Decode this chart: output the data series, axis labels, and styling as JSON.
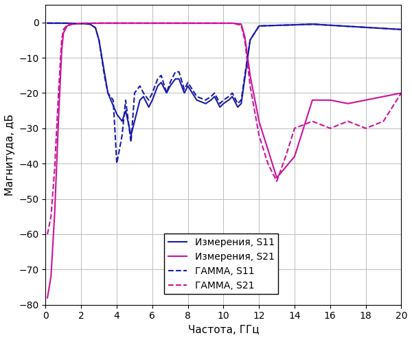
{
  "title": "",
  "xlabel": "Частота, ГГц",
  "ylabel": "Магнитуда, дБ",
  "xlim": [
    0,
    20
  ],
  "ylim": [
    -80,
    5
  ],
  "yticks": [
    0,
    -10,
    -20,
    -30,
    -40,
    -50,
    -60,
    -70,
    -80
  ],
  "xticks": [
    0,
    2,
    4,
    6,
    8,
    10,
    12,
    14,
    16,
    18,
    20
  ],
  "color_s11_meas": "#1a1aaa",
  "color_s21_meas": "#cc1199",
  "color_s11_gamma": "#1a1aaa",
  "color_s21_gamma": "#cc1199",
  "legend_labels": [
    "Измерения, S11",
    "Измерения, S21",
    "ГАММА, S11",
    "ГАММА, S21"
  ],
  "background_color": "#ffffff",
  "grid_color": "#bbbbbb"
}
